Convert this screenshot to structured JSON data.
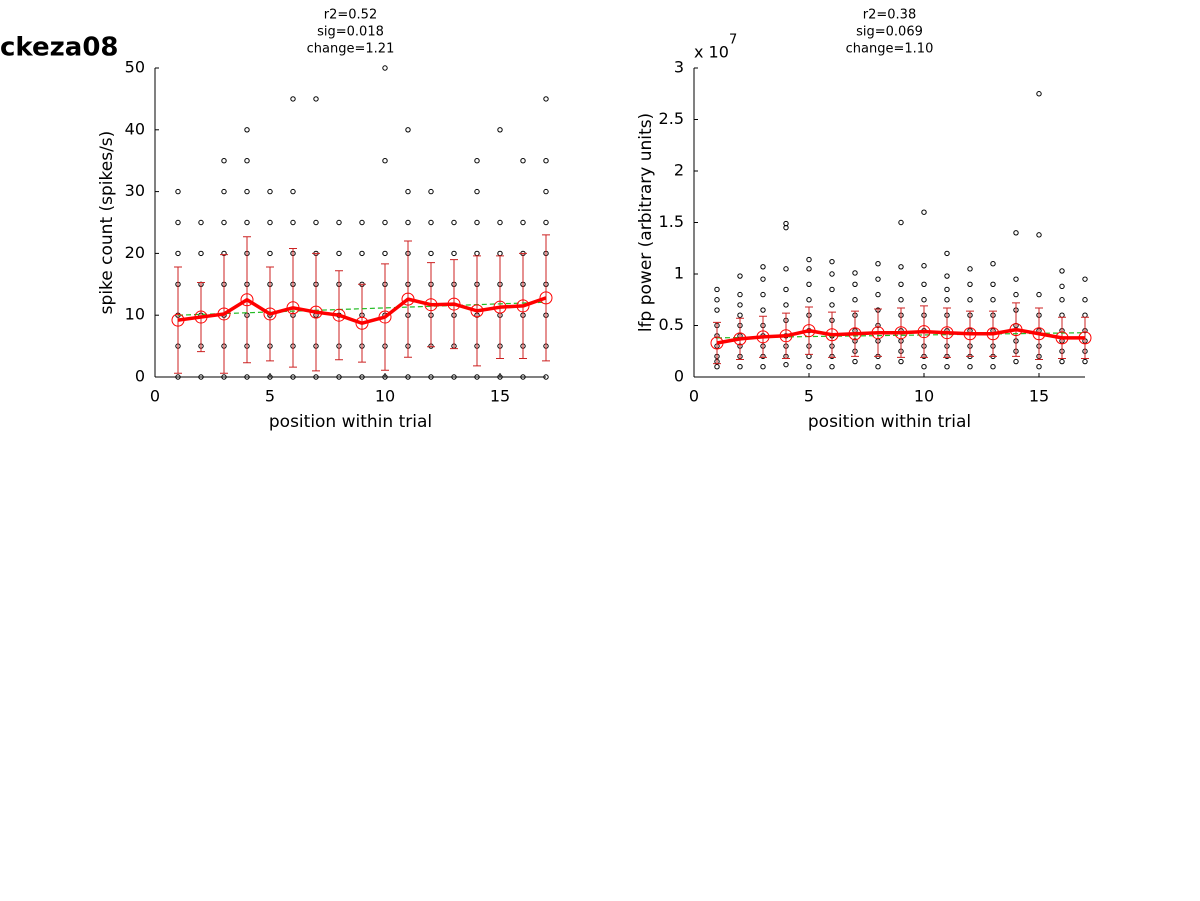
{
  "figure_title": "ckeza08",
  "chart_data": [
    {
      "type": "scatter",
      "title": [
        "r2=0.52",
        "sig=0.018",
        "change=1.21"
      ],
      "xlabel": "position within trial",
      "ylabel": "spike count (spikes/s)",
      "xlim": [
        0,
        17
      ],
      "ylim": [
        0,
        50
      ],
      "xticks": [
        0,
        5,
        10,
        15
      ],
      "yticks": [
        0,
        10,
        20,
        30,
        40,
        50
      ],
      "points": {
        "color": "#000000",
        "x": [
          1,
          1,
          1,
          1,
          1,
          1,
          1,
          2,
          2,
          2,
          2,
          2,
          2,
          3,
          3,
          3,
          3,
          3,
          3,
          3,
          3,
          4,
          4,
          4,
          4,
          4,
          4,
          4,
          4,
          4,
          5,
          5,
          5,
          5,
          5,
          5,
          5,
          6,
          6,
          6,
          6,
          6,
          6,
          6,
          6,
          7,
          7,
          7,
          7,
          7,
          7,
          7,
          8,
          8,
          8,
          8,
          8,
          8,
          9,
          9,
          9,
          9,
          9,
          9,
          10,
          10,
          10,
          10,
          10,
          10,
          10,
          10,
          11,
          11,
          11,
          11,
          11,
          11,
          11,
          11,
          12,
          12,
          12,
          12,
          12,
          12,
          12,
          13,
          13,
          13,
          13,
          13,
          13,
          14,
          14,
          14,
          14,
          14,
          14,
          14,
          14,
          15,
          15,
          15,
          15,
          15,
          15,
          15,
          16,
          16,
          16,
          16,
          16,
          16,
          16,
          17,
          17,
          17,
          17,
          17,
          17,
          17,
          17,
          17
        ],
        "y": [
          0,
          5,
          10,
          15,
          20,
          25,
          30,
          0,
          5,
          10,
          15,
          20,
          25,
          0,
          5,
          10,
          15,
          20,
          25,
          30,
          35,
          0,
          5,
          10,
          15,
          20,
          25,
          30,
          35,
          40,
          0,
          5,
          10,
          15,
          20,
          25,
          30,
          0,
          5,
          10,
          15,
          20,
          25,
          30,
          45,
          0,
          5,
          10,
          15,
          20,
          25,
          45,
          0,
          5,
          10,
          15,
          20,
          25,
          0,
          5,
          10,
          15,
          20,
          25,
          0,
          5,
          10,
          15,
          20,
          25,
          35,
          50,
          0,
          5,
          10,
          15,
          20,
          25,
          30,
          40,
          0,
          5,
          10,
          15,
          20,
          25,
          30,
          0,
          5,
          10,
          15,
          20,
          25,
          0,
          5,
          10,
          15,
          20,
          25,
          30,
          35,
          0,
          5,
          10,
          15,
          20,
          25,
          40,
          0,
          5,
          10,
          15,
          20,
          25,
          35,
          0,
          5,
          10,
          15,
          20,
          25,
          30,
          35,
          45
        ]
      },
      "means": {
        "color": "#ff0000",
        "error_color": "#cc2222",
        "x": [
          1,
          2,
          3,
          4,
          5,
          6,
          7,
          8,
          9,
          10,
          11,
          12,
          13,
          14,
          15,
          16,
          17
        ],
        "values": [
          9.2,
          9.7,
          10.2,
          12.5,
          10.2,
          11.2,
          10.5,
          10.0,
          8.7,
          9.7,
          12.6,
          11.7,
          11.8,
          10.7,
          11.3,
          11.5,
          12.8
        ],
        "errors": [
          8.6,
          5.6,
          9.6,
          10.2,
          7.6,
          9.6,
          9.5,
          7.2,
          6.3,
          8.6,
          9.4,
          6.8,
          7.2,
          8.9,
          8.3,
          8.5,
          10.2
        ]
      },
      "fit": {
        "color": "#22bb22",
        "x": [
          1,
          17
        ],
        "values": [
          10.0,
          12.1
        ]
      }
    },
    {
      "type": "scatter",
      "title": [
        "r2=0.38",
        "sig=0.069",
        "change=1.10"
      ],
      "xlabel": "position within trial",
      "ylabel": "lfp power (arbitrary units)",
      "y_multiplier": {
        "base": "x 10",
        "exponent": "7"
      },
      "xlim": [
        0,
        17
      ],
      "ylim": [
        0,
        3
      ],
      "xticks": [
        0,
        5,
        10,
        15
      ],
      "yticks": [
        0,
        0.5,
        1,
        1.5,
        2,
        2.5,
        3
      ],
      "points": {
        "color": "#000000",
        "x": [
          1,
          1,
          1,
          1,
          1,
          1,
          1,
          1,
          1,
          2,
          2,
          2,
          2,
          2,
          2,
          2,
          2,
          2,
          3,
          3,
          3,
          3,
          3,
          3,
          3,
          3,
          3,
          4,
          4,
          4,
          4,
          4,
          4,
          4,
          4,
          4,
          4,
          5,
          5,
          5,
          5,
          5,
          5,
          5,
          5,
          5,
          6,
          6,
          6,
          6,
          6,
          6,
          6,
          6,
          6,
          7,
          7,
          7,
          7,
          7,
          7,
          7,
          7,
          8,
          8,
          8,
          8,
          8,
          8,
          8,
          8,
          9,
          9,
          9,
          9,
          9,
          9,
          9,
          9,
          9,
          10,
          10,
          10,
          10,
          10,
          10,
          10,
          10,
          10,
          11,
          11,
          11,
          11,
          11,
          11,
          11,
          11,
          11,
          12,
          12,
          12,
          12,
          12,
          12,
          12,
          12,
          13,
          13,
          13,
          13,
          13,
          13,
          13,
          13,
          14,
          14,
          14,
          14,
          14,
          14,
          14,
          14,
          15,
          15,
          15,
          15,
          15,
          15,
          15,
          15,
          16,
          16,
          16,
          16,
          16,
          16,
          16,
          16,
          17,
          17,
          17,
          17,
          17,
          17,
          17
        ],
        "y": [
          0.1,
          0.15,
          0.2,
          0.3,
          0.4,
          0.5,
          0.65,
          0.75,
          0.85,
          0.1,
          0.2,
          0.3,
          0.4,
          0.5,
          0.6,
          0.7,
          0.8,
          0.98,
          0.1,
          0.2,
          0.3,
          0.4,
          0.5,
          0.65,
          0.8,
          0.95,
          1.07,
          0.12,
          0.2,
          0.3,
          0.4,
          0.55,
          0.7,
          0.85,
          1.05,
          1.45,
          1.49,
          0.1,
          0.2,
          0.3,
          0.45,
          0.6,
          0.75,
          0.9,
          1.05,
          1.14,
          0.1,
          0.2,
          0.3,
          0.4,
          0.55,
          0.7,
          0.85,
          1.0,
          1.12,
          0.15,
          0.25,
          0.35,
          0.45,
          0.6,
          0.75,
          0.9,
          1.01,
          0.1,
          0.2,
          0.35,
          0.5,
          0.65,
          0.8,
          0.95,
          1.1,
          0.15,
          0.25,
          0.35,
          0.45,
          0.6,
          0.75,
          0.9,
          1.07,
          1.5,
          0.1,
          0.2,
          0.3,
          0.45,
          0.6,
          0.75,
          0.9,
          1.08,
          1.6,
          0.1,
          0.2,
          0.3,
          0.45,
          0.6,
          0.75,
          0.85,
          0.98,
          1.2,
          0.1,
          0.2,
          0.3,
          0.45,
          0.6,
          0.75,
          0.9,
          1.05,
          0.1,
          0.2,
          0.3,
          0.45,
          0.6,
          0.75,
          0.9,
          1.1,
          0.15,
          0.25,
          0.35,
          0.5,
          0.65,
          0.8,
          0.95,
          1.4,
          0.1,
          0.2,
          0.3,
          0.45,
          0.6,
          0.8,
          1.38,
          2.75,
          0.15,
          0.25,
          0.35,
          0.45,
          0.6,
          0.75,
          0.88,
          1.03,
          0.15,
          0.25,
          0.35,
          0.45,
          0.6,
          0.75,
          0.95
        ]
      },
      "means": {
        "color": "#ff0000",
        "error_color": "#cc2222",
        "x": [
          1,
          2,
          3,
          4,
          5,
          6,
          7,
          8,
          9,
          10,
          11,
          12,
          13,
          14,
          15,
          16,
          17
        ],
        "values": [
          0.33,
          0.37,
          0.39,
          0.4,
          0.45,
          0.41,
          0.42,
          0.43,
          0.43,
          0.44,
          0.43,
          0.42,
          0.42,
          0.46,
          0.42,
          0.38,
          0.38
        ],
        "errors": [
          0.2,
          0.2,
          0.2,
          0.22,
          0.23,
          0.22,
          0.22,
          0.23,
          0.24,
          0.25,
          0.24,
          0.22,
          0.22,
          0.26,
          0.25,
          0.2,
          0.2
        ]
      },
      "fit": {
        "color": "#22bb22",
        "x": [
          1,
          17
        ],
        "values": [
          0.38,
          0.43
        ]
      }
    }
  ]
}
